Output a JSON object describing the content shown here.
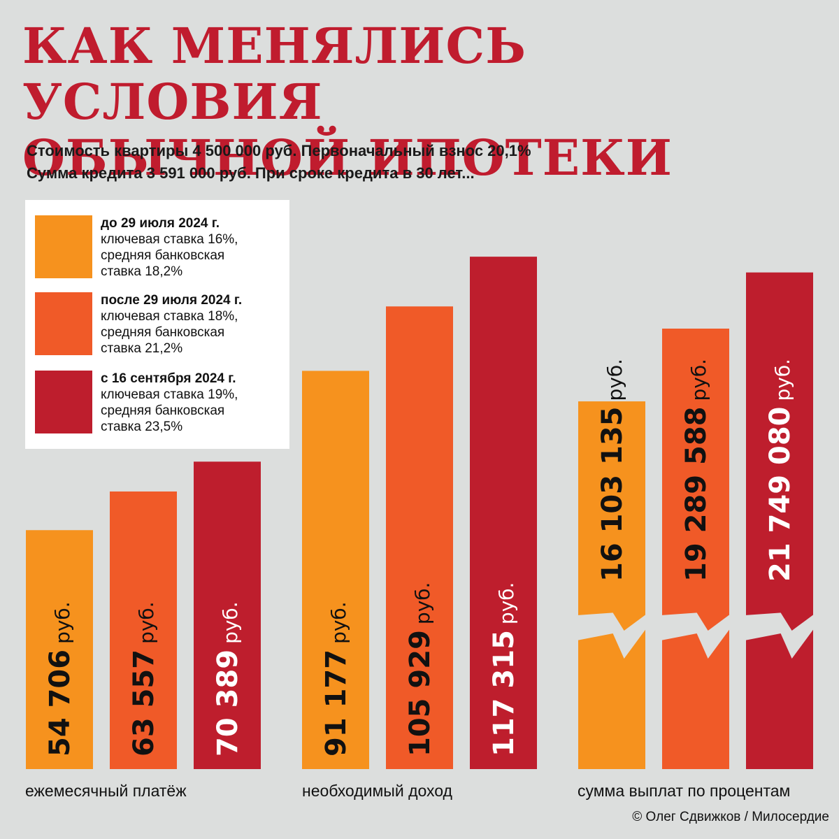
{
  "title": [
    "КАК МЕНЯЛИСЬ УСЛОВИЯ",
    "ОБЫЧНОЙ ИПОТЕКИ"
  ],
  "subtitle": [
    "Стоимость квартиры 4 500 000 руб. Первоначальный взнос 20,1%",
    "Сумма кредита 3 591 000 руб. При сроке кредита в 30 лет..."
  ],
  "legend": [
    {
      "period": "до 29 июля 2024 г.",
      "key_rate": "ключевая ставка 16%,",
      "bank_rate_1": "средняя банковская",
      "bank_rate_2": "ставка 18,2%",
      "color": "#f6921e"
    },
    {
      "period": "после 29 июля 2024 г.",
      "key_rate": "ключевая ставка 18%,",
      "bank_rate_1": "средняя банковская",
      "bank_rate_2": "ставка 21,2%",
      "color": "#f05a28"
    },
    {
      "period": "с 16 сентября 2024 г.",
      "key_rate": "ключевая ставка 19%,",
      "bank_rate_1": "средняя банковская",
      "bank_rate_2": "ставка 23,5%",
      "color": "#be1e2d"
    }
  ],
  "chart_data": {
    "type": "bar",
    "title": "КАК МЕНЯЛИСЬ УСЛОВИЯ ОБЫЧНОЙ ИПОТЕКИ",
    "categories": [
      "ежемесячный платёж",
      "необходимый доход",
      "сумма выплат по процентам"
    ],
    "unit": "руб.",
    "axis_break_in_group": 3,
    "series": [
      {
        "name": "до 29 июля 2024 г.",
        "color": "#f6921e",
        "values": [
          54706,
          91177,
          16103135
        ],
        "labels": [
          "54 706",
          "91 177",
          "16 103 135"
        ]
      },
      {
        "name": "после 29 июля 2024 г.",
        "color": "#f05a28",
        "values": [
          63557,
          105929,
          19289588
        ],
        "labels": [
          "63 557",
          "105 929",
          "19 289 588"
        ]
      },
      {
        "name": "с 16 сентября 2024 г.",
        "color": "#be1e2d",
        "values": [
          70389,
          117315,
          21749080
        ],
        "labels": [
          "70 389",
          "117 315",
          "21 749 080"
        ]
      }
    ]
  },
  "credit": "© Олег Сдвижков / Милосердие"
}
